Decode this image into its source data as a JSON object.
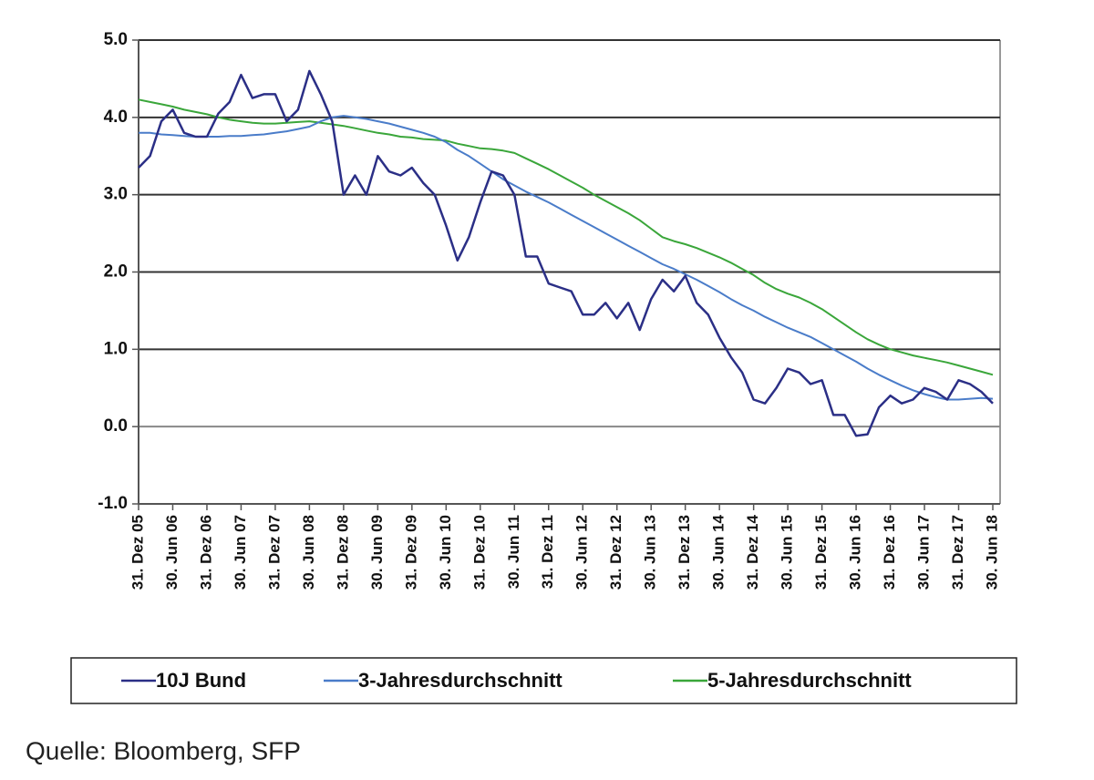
{
  "chart_data": {
    "type": "line",
    "categories": [
      "31. Dez 05",
      null,
      null,
      "30. Jun 06",
      null,
      null,
      "31. Dez 06",
      null,
      null,
      "30. Jun 07",
      null,
      null,
      "31. Dez 07",
      null,
      null,
      "30. Jun 08",
      null,
      null,
      "31. Dez 08",
      null,
      null,
      "30. Jun 09",
      null,
      null,
      "31. Dez 09",
      null,
      null,
      "30. Jun 10",
      null,
      null,
      "31. Dez 10",
      null,
      null,
      "30. Jun 11",
      null,
      null,
      "31. Dez 11",
      null,
      null,
      "30. Jun 12",
      null,
      null,
      "31. Dez 12",
      null,
      null,
      "30. Jun 13",
      null,
      null,
      "31. Dez 13",
      null,
      null,
      "30. Jun 14",
      null,
      null,
      "31. Dez 14",
      null,
      null,
      "30. Jun 15",
      null,
      null,
      "31. Dez 15",
      null,
      null,
      "30. Jun 16",
      null,
      null,
      "31. Dez 16",
      null,
      null,
      "30. Jun 17",
      null,
      null,
      "31. Dez 17",
      null,
      null,
      "30. Jun 18"
    ],
    "series": [
      {
        "name": "10J Bund",
        "color": "#2b2f86",
        "values": [
          3.35,
          3.5,
          3.95,
          4.1,
          3.8,
          3.75,
          3.75,
          4.05,
          4.2,
          4.55,
          4.25,
          4.3,
          4.3,
          3.95,
          4.1,
          4.6,
          4.3,
          3.95,
          3.0,
          3.25,
          3.0,
          3.5,
          3.3,
          3.25,
          3.35,
          3.15,
          3.0,
          2.6,
          2.15,
          2.45,
          2.9,
          3.3,
          3.25,
          3.0,
          2.2,
          2.2,
          1.85,
          1.8,
          1.75,
          1.45,
          1.45,
          1.6,
          1.4,
          1.6,
          1.25,
          1.65,
          1.9,
          1.75,
          1.95,
          1.6,
          1.45,
          1.15,
          0.9,
          0.7,
          0.35,
          0.3,
          0.5,
          0.75,
          0.7,
          0.55,
          0.6,
          0.15,
          0.15,
          -0.12,
          -0.1,
          0.25,
          0.4,
          0.3,
          0.35,
          0.5,
          0.45,
          0.35,
          0.6,
          0.55,
          0.45,
          0.3
        ]
      },
      {
        "name": "3-Jahresdurchschnitt",
        "color": "#4a7cc9",
        "values": [
          3.8,
          3.8,
          3.78,
          3.77,
          3.76,
          3.75,
          3.75,
          3.75,
          3.76,
          3.76,
          3.77,
          3.78,
          3.8,
          3.82,
          3.85,
          3.88,
          3.95,
          4.0,
          4.02,
          4.0,
          3.98,
          3.95,
          3.92,
          3.88,
          3.84,
          3.8,
          3.75,
          3.68,
          3.58,
          3.5,
          3.4,
          3.3,
          3.2,
          3.12,
          3.04,
          2.97,
          2.9,
          2.82,
          2.74,
          2.66,
          2.58,
          2.5,
          2.42,
          2.34,
          2.26,
          2.18,
          2.1,
          2.04,
          1.97,
          1.9,
          1.82,
          1.74,
          1.65,
          1.57,
          1.5,
          1.42,
          1.35,
          1.28,
          1.22,
          1.16,
          1.08,
          1.0,
          0.92,
          0.84,
          0.75,
          0.67,
          0.6,
          0.53,
          0.47,
          0.42,
          0.38,
          0.35,
          0.35,
          0.36,
          0.37,
          0.36
        ]
      },
      {
        "name": "5-Jahresdurchschnitt",
        "color": "#3aa63a",
        "values": [
          4.23,
          4.2,
          4.17,
          4.14,
          4.1,
          4.07,
          4.04,
          4.0,
          3.97,
          3.95,
          3.93,
          3.92,
          3.92,
          3.93,
          3.94,
          3.95,
          3.93,
          3.91,
          3.89,
          3.86,
          3.83,
          3.8,
          3.78,
          3.75,
          3.74,
          3.72,
          3.71,
          3.7,
          3.66,
          3.63,
          3.6,
          3.59,
          3.57,
          3.54,
          3.47,
          3.4,
          3.33,
          3.25,
          3.17,
          3.09,
          3.0,
          2.92,
          2.84,
          2.76,
          2.67,
          2.56,
          2.45,
          2.4,
          2.36,
          2.31,
          2.25,
          2.19,
          2.12,
          2.04,
          1.96,
          1.86,
          1.78,
          1.72,
          1.67,
          1.6,
          1.52,
          1.42,
          1.32,
          1.22,
          1.13,
          1.06,
          1.0,
          0.96,
          0.92,
          0.89,
          0.86,
          0.83,
          0.79,
          0.75,
          0.71,
          0.67
        ]
      }
    ],
    "ylim": [
      -1,
      5
    ],
    "yticks": [
      {
        "value": -1,
        "label": "-1.0"
      },
      {
        "value": 0,
        "label": "0.0"
      },
      {
        "value": 1,
        "label": "1.0"
      },
      {
        "value": 2,
        "label": "2.0"
      },
      {
        "value": 3,
        "label": "3.0"
      },
      {
        "value": 4,
        "label": "4.0"
      },
      {
        "value": 5,
        "label": "5.0"
      }
    ],
    "grid": true,
    "legend": "bottom",
    "source": "Quelle: Bloomberg, SFP"
  }
}
